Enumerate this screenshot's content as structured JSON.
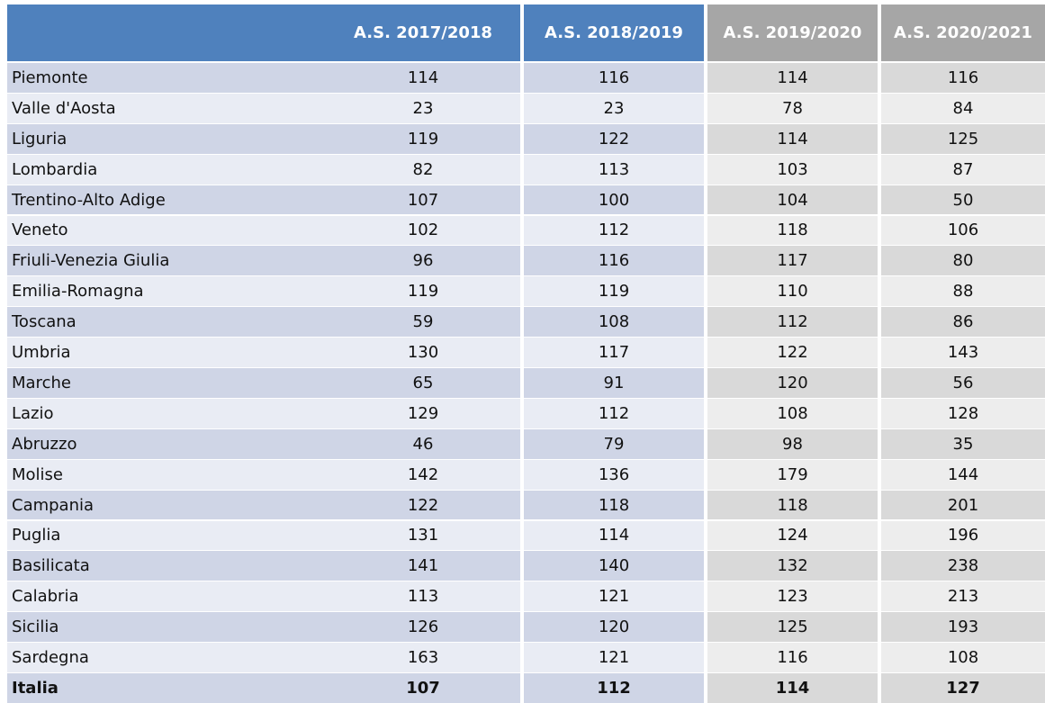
{
  "table": {
    "columns": [
      "A.S. 2017/2018",
      "A.S. 2018/2019",
      "A.S. 2019/2020",
      "A.S. 2020/2021"
    ],
    "rows": [
      {
        "label": "Piemonte",
        "values": [
          114,
          116,
          114,
          116
        ]
      },
      {
        "label": "Valle d'Aosta",
        "values": [
          23,
          23,
          78,
          84
        ]
      },
      {
        "label": "Liguria",
        "values": [
          119,
          122,
          114,
          125
        ]
      },
      {
        "label": "Lombardia",
        "values": [
          82,
          113,
          103,
          87
        ]
      },
      {
        "label": "Trentino-Alto Adige",
        "values": [
          107,
          100,
          104,
          50
        ]
      },
      {
        "label": "Veneto",
        "values": [
          102,
          112,
          118,
          106
        ]
      },
      {
        "label": "Friuli-Venezia Giulia",
        "values": [
          96,
          116,
          117,
          80
        ]
      },
      {
        "label": "Emilia-Romagna",
        "values": [
          119,
          119,
          110,
          88
        ]
      },
      {
        "label": "Toscana",
        "values": [
          59,
          108,
          112,
          86
        ]
      },
      {
        "label": "Umbria",
        "values": [
          130,
          117,
          122,
          143
        ]
      },
      {
        "label": "Marche",
        "values": [
          65,
          91,
          120,
          56
        ]
      },
      {
        "label": "Lazio",
        "values": [
          129,
          112,
          108,
          128
        ]
      },
      {
        "label": "Abruzzo",
        "values": [
          46,
          79,
          98,
          35
        ]
      },
      {
        "label": "Molise",
        "values": [
          142,
          136,
          179,
          144
        ]
      },
      {
        "label": "Campania",
        "values": [
          122,
          118,
          118,
          201
        ]
      },
      {
        "label": "Puglia",
        "values": [
          131,
          114,
          124,
          196
        ]
      },
      {
        "label": "Basilicata",
        "values": [
          141,
          140,
          132,
          238
        ]
      },
      {
        "label": "Calabria",
        "values": [
          113,
          121,
          123,
          213
        ]
      },
      {
        "label": "Sicilia",
        "values": [
          126,
          120,
          125,
          193
        ]
      },
      {
        "label": "Sardegna",
        "values": [
          163,
          121,
          116,
          108
        ]
      }
    ],
    "total": {
      "label": "Italia",
      "values": [
        107,
        112,
        114,
        127
      ]
    }
  }
}
